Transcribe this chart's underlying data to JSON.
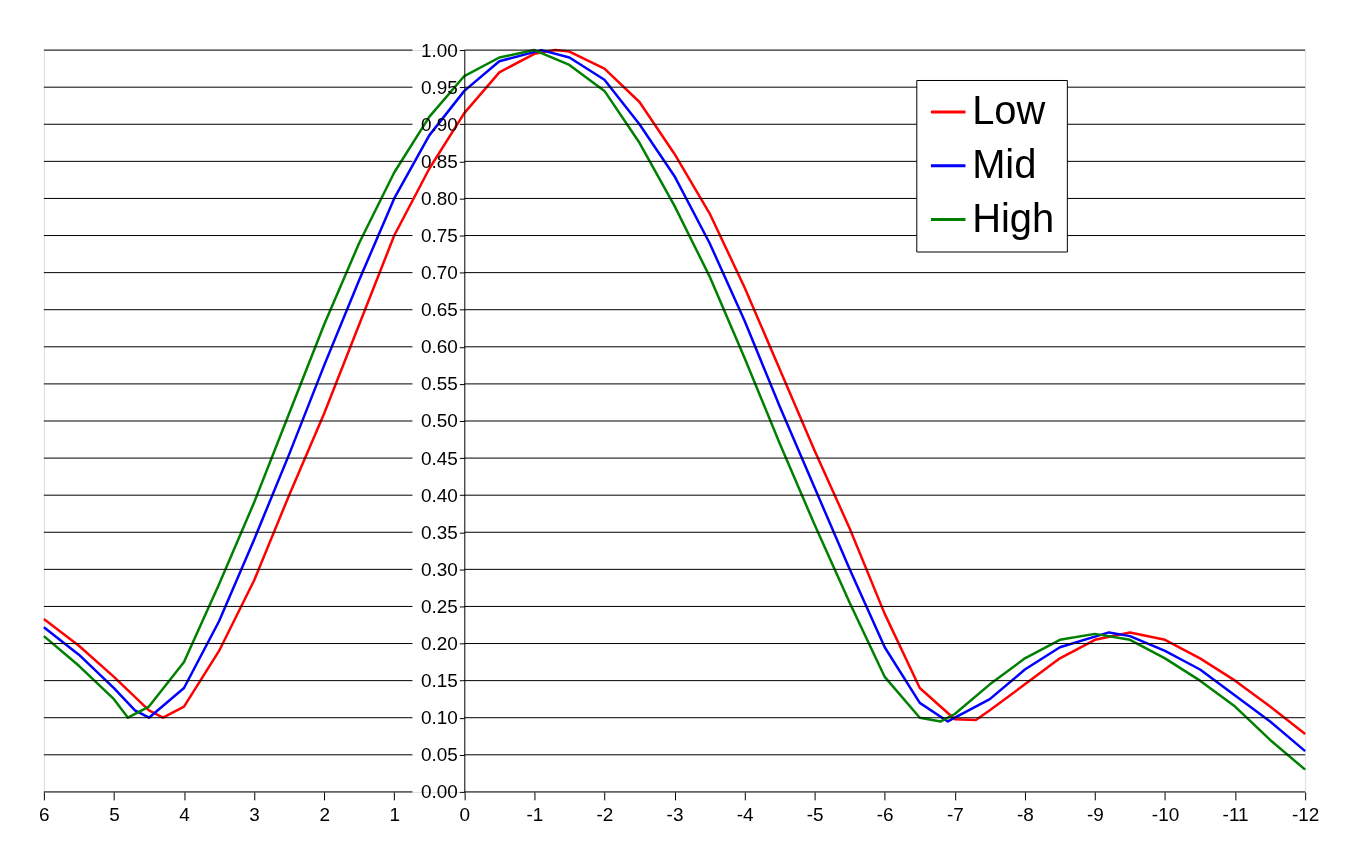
{
  "chart_data": {
    "type": "line",
    "xlim": [
      6,
      -12
    ],
    "xticks": [
      6,
      5,
      4,
      3,
      2,
      1,
      0,
      -1,
      -2,
      -3,
      -4,
      -5,
      -6,
      -7,
      -8,
      -9,
      -10,
      -11,
      -12
    ],
    "ylim": [
      0,
      1
    ],
    "yticks": [
      {
        "value": 0,
        "label": "0.00"
      },
      {
        "value": 0.05,
        "label": "0.05"
      },
      {
        "value": 0.1,
        "label": "0.10"
      },
      {
        "value": 0.15,
        "label": "0.15"
      },
      {
        "value": 0.2,
        "label": "0.20"
      },
      {
        "value": 0.25,
        "label": "0.25"
      },
      {
        "value": 0.3,
        "label": "0.30"
      },
      {
        "value": 0.35,
        "label": "0.35"
      },
      {
        "value": 0.4,
        "label": "0.40"
      },
      {
        "value": 0.45,
        "label": "0.45"
      },
      {
        "value": 0.5,
        "label": "0.50"
      },
      {
        "value": 0.55,
        "label": "0.55"
      },
      {
        "value": 0.6,
        "label": "0.60"
      },
      {
        "value": 0.65,
        "label": "0.65"
      },
      {
        "value": 0.7,
        "label": "0.70"
      },
      {
        "value": 0.75,
        "label": "0.75"
      },
      {
        "value": 0.8,
        "label": "0.80"
      },
      {
        "value": 0.85,
        "label": "0.85"
      },
      {
        "value": 0.9,
        "label": "0.90"
      },
      {
        "value": 0.95,
        "label": "0.95"
      },
      {
        "value": 1,
        "label": "1.00"
      }
    ],
    "grid": "y",
    "legend": "top right",
    "marker": "none",
    "line_style": "solid",
    "series": [
      {
        "name": "Low",
        "color": "#ff0000",
        "x": [
          6,
          5.5,
          5,
          4.5,
          4.3,
          4,
          3.5,
          3,
          2.5,
          2,
          1.5,
          1,
          0.5,
          0,
          -0.5,
          -1,
          -1.3,
          -1.5,
          -2,
          -2.5,
          -3,
          -3.5,
          -4,
          -4.5,
          -5,
          -5.5,
          -6,
          -6.5,
          -7,
          -7.3,
          -7.5,
          -8,
          -8.5,
          -9,
          -9.5,
          -10,
          -10.5,
          -11,
          -11.5,
          -12
        ],
        "values": [
          0.233,
          0.197,
          0.155,
          0.11,
          0.1,
          0.115,
          0.19,
          0.285,
          0.4,
          0.51,
          0.63,
          0.75,
          0.84,
          0.915,
          0.97,
          0.995,
          1.0,
          0.998,
          0.975,
          0.93,
          0.86,
          0.78,
          0.68,
          0.57,
          0.46,
          0.355,
          0.24,
          0.14,
          0.098,
          0.097,
          0.11,
          0.145,
          0.18,
          0.205,
          0.215,
          0.205,
          0.18,
          0.15,
          0.115,
          0.078
        ]
      },
      {
        "name": "Mid",
        "color": "#0000ff",
        "x": [
          6,
          5.5,
          5,
          4.7,
          4.5,
          4,
          3.5,
          3,
          2.5,
          2,
          1.5,
          1,
          0.5,
          0,
          -0.5,
          -1.1,
          -1.5,
          -2,
          -2.5,
          -3,
          -3.5,
          -4,
          -4.5,
          -5,
          -5.5,
          -6,
          -6.5,
          -6.9,
          -7.5,
          -8,
          -8.5,
          -9.2,
          -9.5,
          -10,
          -10.5,
          -11,
          -11.5,
          -12
        ],
        "values": [
          0.222,
          0.185,
          0.14,
          0.11,
          0.1,
          0.14,
          0.23,
          0.34,
          0.455,
          0.575,
          0.69,
          0.8,
          0.885,
          0.945,
          0.985,
          1.0,
          0.99,
          0.96,
          0.9,
          0.83,
          0.74,
          0.635,
          0.52,
          0.41,
          0.3,
          0.195,
          0.12,
          0.095,
          0.125,
          0.165,
          0.195,
          0.215,
          0.21,
          0.19,
          0.165,
          0.13,
          0.095,
          0.055
        ]
      },
      {
        "name": "High",
        "color": "#008000",
        "x": [
          6,
          5.5,
          5,
          4.8,
          4.5,
          4,
          3.5,
          3,
          2.5,
          2,
          1.5,
          1,
          0.5,
          0,
          -0.5,
          -1,
          -1.5,
          -2,
          -2.5,
          -3,
          -3.5,
          -4,
          -4.5,
          -5,
          -5.5,
          -6,
          -6.5,
          -6.8,
          -7,
          -7.5,
          -8,
          -8.5,
          -9,
          -9.5,
          -10,
          -10.5,
          -11,
          -11.5,
          -12
        ],
        "values": [
          0.21,
          0.17,
          0.125,
          0.1,
          0.115,
          0.175,
          0.28,
          0.39,
          0.51,
          0.63,
          0.74,
          0.835,
          0.91,
          0.965,
          0.99,
          1.0,
          0.98,
          0.945,
          0.875,
          0.79,
          0.695,
          0.585,
          0.47,
          0.36,
          0.255,
          0.155,
          0.1,
          0.095,
          0.105,
          0.145,
          0.18,
          0.205,
          0.213,
          0.205,
          0.18,
          0.15,
          0.115,
          0.07,
          0.03
        ]
      }
    ]
  }
}
